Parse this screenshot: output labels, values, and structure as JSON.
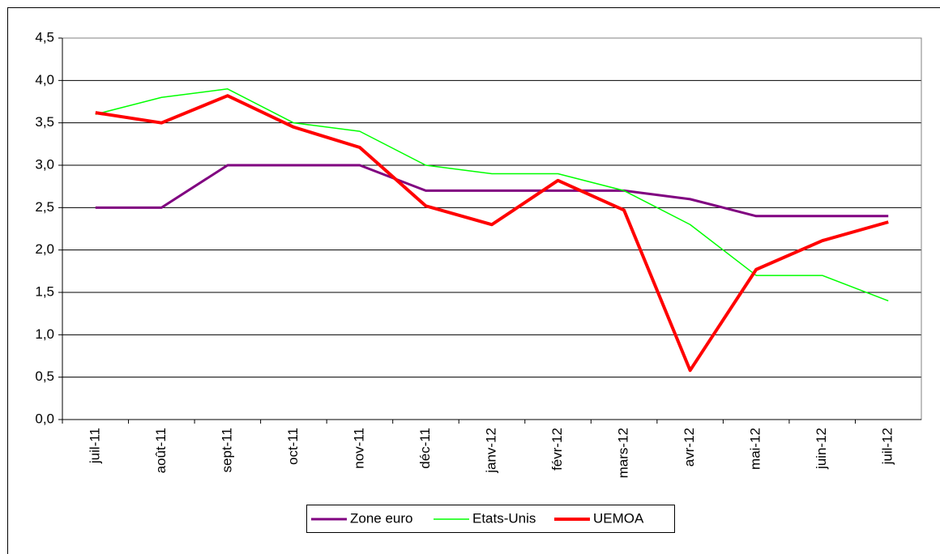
{
  "chart_data": {
    "type": "line",
    "categories": [
      "juil-11",
      "août-11",
      "sept-11",
      "oct-11",
      "nov-11",
      "déc-11",
      "janv-12",
      "févr-12",
      "mars-12",
      "avr-12",
      "mai-12",
      "juin-12",
      "juil-12"
    ],
    "series": [
      {
        "name": "Zone euro",
        "color": "#800080",
        "width": 3,
        "values": [
          2.5,
          2.5,
          3.0,
          3.0,
          3.0,
          2.7,
          2.7,
          2.7,
          2.7,
          2.6,
          2.4,
          2.4,
          2.4
        ]
      },
      {
        "name": "Etats-Unis",
        "color": "#00ff00",
        "width": 1.5,
        "values": [
          3.6,
          3.8,
          3.9,
          3.5,
          3.4,
          3.0,
          2.9,
          2.9,
          2.7,
          2.3,
          1.7,
          1.7,
          1.4
        ]
      },
      {
        "name": "UEMOA",
        "color": "#ff0000",
        "width": 4,
        "values": [
          3.62,
          3.5,
          3.82,
          3.45,
          3.21,
          2.52,
          2.3,
          2.82,
          2.47,
          0.58,
          1.77,
          2.11,
          2.33
        ]
      }
    ],
    "ylim": [
      0,
      4.5
    ],
    "yticks": [
      {
        "value": 0,
        "label": "0,0"
      },
      {
        "value": 0.5,
        "label": "0,5"
      },
      {
        "value": 1,
        "label": "1,0"
      },
      {
        "value": 1.5,
        "label": "1,5"
      },
      {
        "value": 2,
        "label": "2,0"
      },
      {
        "value": 2.5,
        "label": "2,5"
      },
      {
        "value": 3,
        "label": "3,0"
      },
      {
        "value": 3.5,
        "label": "3,5"
      },
      {
        "value": 4,
        "label": "4,0"
      },
      {
        "value": 4.5,
        "label": "4,5"
      }
    ],
    "grid": true,
    "legend": "bottom"
  }
}
